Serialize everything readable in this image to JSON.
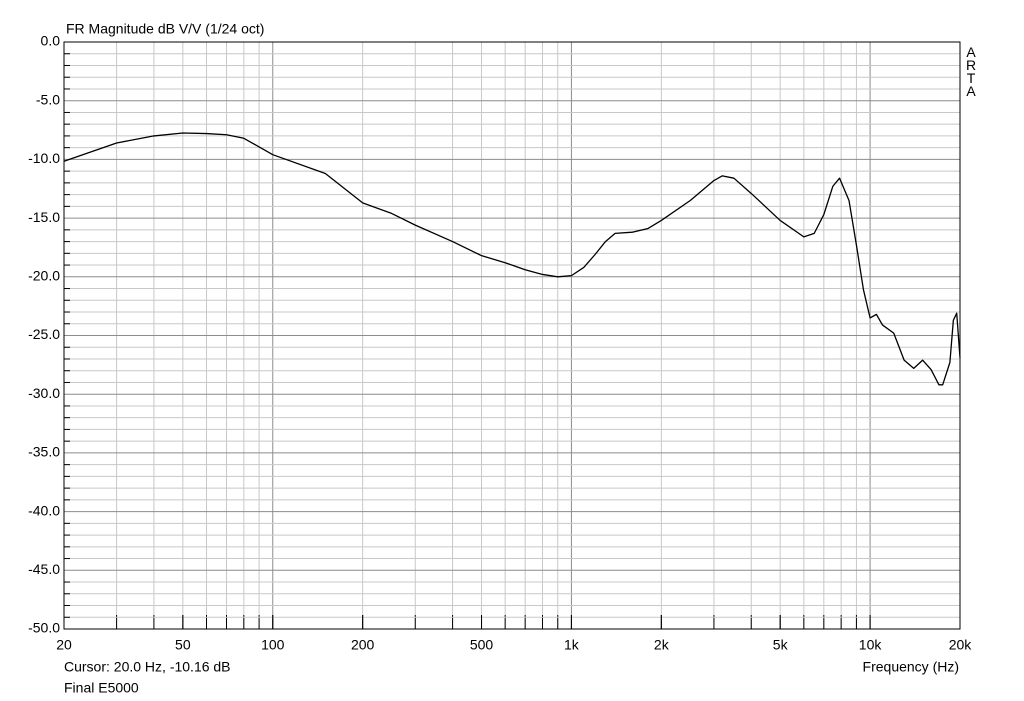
{
  "chart_data": {
    "type": "line",
    "title": "FR Magnitude dB V/V (1/24 oct)",
    "x_label": "Frequency (Hz)",
    "annotation": "Cursor: 20.0 Hz, -10.16 dB",
    "watermark": "ARTA",
    "log_x": true,
    "grid": true,
    "xlim": [
      20,
      20000
    ],
    "ylim": [
      -50,
      0
    ],
    "xticks": [
      20,
      50,
      100,
      200,
      500,
      {
        "value": 1000,
        "label": "1k"
      },
      {
        "value": 2000,
        "label": "2k"
      },
      {
        "value": 5000,
        "label": "5k"
      },
      {
        "value": 10000,
        "label": "10k"
      },
      {
        "value": 20000,
        "label": "20k"
      }
    ],
    "yticks": [
      {
        "value": 0,
        "label": "0.0"
      },
      {
        "value": -5,
        "label": "-5.0"
      },
      {
        "value": -10,
        "label": "-10.0"
      },
      {
        "value": -15,
        "label": "-15.0"
      },
      {
        "value": -20,
        "label": "-20.0"
      },
      {
        "value": -25,
        "label": "-25.0"
      },
      {
        "value": -30,
        "label": "-30.0"
      },
      {
        "value": -35,
        "label": "-35.0"
      },
      {
        "value": -40,
        "label": "-40.0"
      },
      {
        "value": -45,
        "label": "-45.0"
      },
      {
        "value": -50,
        "label": "-50.0"
      }
    ],
    "x": [
      20,
      30,
      40,
      50,
      60,
      70,
      80,
      100,
      150,
      200,
      250,
      300,
      400,
      500,
      600,
      700,
      800,
      900,
      1000,
      1100,
      1200,
      1300,
      1400,
      1600,
      1800,
      2000,
      2500,
      3000,
      3200,
      3500,
      4000,
      5000,
      6000,
      6500,
      7000,
      7500,
      7900,
      8500,
      9000,
      9500,
      10000,
      10500,
      11000,
      12000,
      13000,
      14000,
      15000,
      16000,
      17000,
      17500,
      18500,
      19000,
      19500,
      20000
    ],
    "series": [
      {
        "name": "Final E5000",
        "color": "#000000",
        "values": [
          -10.16,
          -8.6,
          -8.0,
          -7.75,
          -7.8,
          -7.9,
          -8.2,
          -9.6,
          -11.2,
          -13.7,
          -14.6,
          -15.6,
          -17.0,
          -18.2,
          -18.8,
          -19.4,
          -19.8,
          -20.0,
          -19.9,
          -19.2,
          -18.1,
          -17.0,
          -16.3,
          -16.2,
          -15.9,
          -15.2,
          -13.5,
          -11.8,
          -11.4,
          -11.6,
          -12.9,
          -15.2,
          -16.6,
          -16.3,
          -14.7,
          -12.3,
          -11.6,
          -13.5,
          -17.3,
          -21.1,
          -23.5,
          -23.2,
          -24.1,
          -24.8,
          -27.1,
          -27.8,
          -27.1,
          -27.9,
          -29.2,
          -29.2,
          -27.3,
          -23.7,
          -23.1,
          -26.9
        ]
      }
    ]
  }
}
